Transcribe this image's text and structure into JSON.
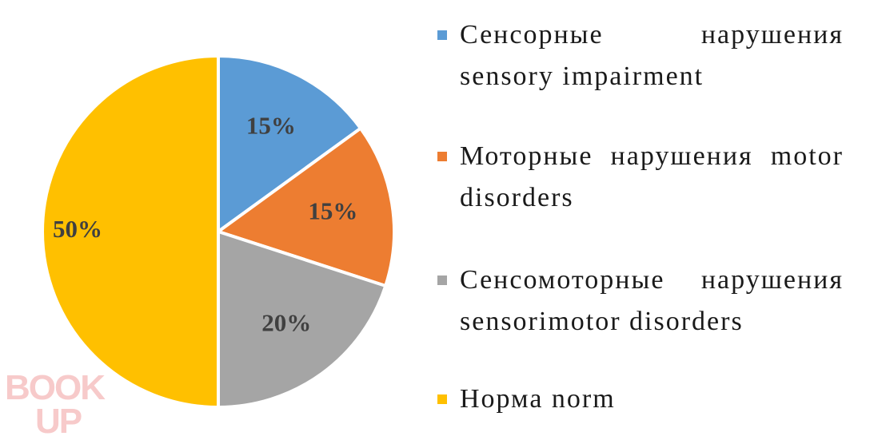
{
  "chart_data": {
    "type": "pie",
    "title": "",
    "start_angle_deg": 0,
    "direction": "clockwise",
    "slices": [
      {
        "label": "Сенсорные нарушения sensory impairment",
        "value": 15,
        "display": "15%",
        "color": "#5B9BD5"
      },
      {
        "label": "Моторные нарушения motor disorders",
        "value": 15,
        "display": "15%",
        "color": "#ED7D31"
      },
      {
        "label": "Сенсомоторные нарушения sensorimotor disorders",
        "value": 20,
        "display": "20%",
        "color": "#A5A5A5"
      },
      {
        "label": "Норма norm",
        "value": 50,
        "display": "50%",
        "color": "#FFC000"
      }
    ],
    "legend_position": "right"
  },
  "watermark": {
    "text_top": "BOOK",
    "text_bottom": "UP",
    "color": "#f2a0a0"
  }
}
